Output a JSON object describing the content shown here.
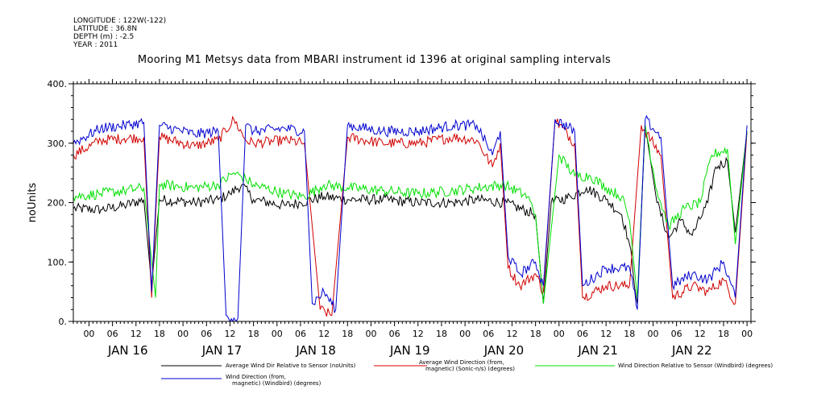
{
  "metadata": {
    "longitude": "LONGITUDE : 122W(-122)",
    "latitude": "LATITUDE : 36.8N",
    "depth": "DEPTH (m) : -2.5",
    "year": "YEAR : 2011"
  },
  "chart_data": {
    "type": "line",
    "title": "Mooring M1 Metsys data from MBARI instrument id 1396 at original sampling intervals",
    "ylabel": "noUnits",
    "xlabel": "",
    "ylim": [
      0,
      400
    ],
    "xlim": [
      "2011-01-15T20:00",
      "2011-01-23T01:00"
    ],
    "y_ticks": [
      "0.",
      "100.",
      "200.",
      "300.",
      "400."
    ],
    "x_hour_ticks": [
      "00",
      "06",
      "12",
      "18"
    ],
    "day_labels": [
      "JAN 16",
      "JAN 17",
      "JAN 18",
      "JAN 19",
      "JAN 20",
      "JAN 21",
      "JAN 22"
    ],
    "grid": false,
    "legend_placement": "bottom",
    "colors": {
      "avg_wind_dir_rel_sensor": "#000000",
      "avg_wind_direction_sonic": "#d00000",
      "wind_dir_rel_sensor_windbird": "#00e000",
      "wind_direction_windbird": "#0000d0"
    },
    "series": [
      {
        "name": "Average Wind Dir Relative to Sensor (noUnits)",
        "color": "#000000",
        "points": [
          [
            "2011-01-15T20:00",
            190
          ],
          [
            "2011-01-16T03:00",
            188
          ],
          [
            "2011-01-16T09:00",
            195
          ],
          [
            "2011-01-16T14:00",
            205
          ],
          [
            "2011-01-16T16:00",
            60
          ],
          [
            "2011-01-16T18:00",
            205
          ],
          [
            "2011-01-17T03:00",
            200
          ],
          [
            "2011-01-17T09:00",
            205
          ],
          [
            "2011-01-17T12:00",
            215
          ],
          [
            "2011-01-17T15:00",
            230
          ],
          [
            "2011-01-17T18:00",
            205
          ],
          [
            "2011-01-18T02:00",
            195
          ],
          [
            "2011-01-18T06:00",
            200
          ],
          [
            "2011-01-18T12:00",
            210
          ],
          [
            "2011-01-18T18:00",
            205
          ],
          [
            "2011-01-19T03:00",
            205
          ],
          [
            "2011-01-19T12:00",
            200
          ],
          [
            "2011-01-19T21:00",
            200
          ],
          [
            "2011-01-20T03:00",
            205
          ],
          [
            "2011-01-20T10:00",
            200
          ],
          [
            "2011-01-20T18:00",
            180
          ],
          [
            "2011-01-20T20:00",
            30
          ],
          [
            "2011-01-20T22:00",
            200
          ],
          [
            "2011-01-21T03:00",
            210
          ],
          [
            "2011-01-21T07:00",
            225
          ],
          [
            "2011-01-21T12:00",
            205
          ],
          [
            "2011-01-21T16:00",
            180
          ],
          [
            "2011-01-21T18:00",
            130
          ],
          [
            "2011-01-21T20:00",
            30
          ],
          [
            "2011-01-21T22:00",
            330
          ],
          [
            "2011-01-22T01:00",
            200
          ],
          [
            "2011-01-22T04:00",
            140
          ],
          [
            "2011-01-22T07:00",
            170
          ],
          [
            "2011-01-22T10:00",
            145
          ],
          [
            "2011-01-22T14:00",
            200
          ],
          [
            "2011-01-22T16:00",
            260
          ],
          [
            "2011-01-22T19:00",
            270
          ],
          [
            "2011-01-22T21:00",
            150
          ],
          [
            "2011-01-23T00:00",
            320
          ]
        ]
      },
      {
        "name": "Average Wind Direction (from, magnetic) (Sonic-n/s) (degrees)",
        "color": "#d00000",
        "points": [
          [
            "2011-01-15T20:00",
            280
          ],
          [
            "2011-01-16T03:00",
            305
          ],
          [
            "2011-01-16T09:00",
            308
          ],
          [
            "2011-01-16T14:00",
            310
          ],
          [
            "2011-01-16T16:00",
            40
          ],
          [
            "2011-01-16T18:00",
            310
          ],
          [
            "2011-01-17T03:00",
            295
          ],
          [
            "2011-01-17T09:00",
            305
          ],
          [
            "2011-01-17T13:00",
            340
          ],
          [
            "2011-01-17T16:00",
            305
          ],
          [
            "2011-01-17T18:00",
            300
          ],
          [
            "2011-01-18T02:00",
            305
          ],
          [
            "2011-01-18T07:00",
            300
          ],
          [
            "2011-01-18T11:00",
            20
          ],
          [
            "2011-01-18T14:00",
            10
          ],
          [
            "2011-01-18T18:00",
            310
          ],
          [
            "2011-01-19T03:00",
            300
          ],
          [
            "2011-01-19T12:00",
            300
          ],
          [
            "2011-01-19T21:00",
            310
          ],
          [
            "2011-01-20T03:00",
            305
          ],
          [
            "2011-01-20T07:00",
            260
          ],
          [
            "2011-01-20T09:00",
            300
          ],
          [
            "2011-01-20T11:00",
            90
          ],
          [
            "2011-01-20T14:00",
            60
          ],
          [
            "2011-01-20T18:00",
            80
          ],
          [
            "2011-01-20T20:00",
            50
          ],
          [
            "2011-01-20T23:00",
            340
          ],
          [
            "2011-01-21T04:00",
            300
          ],
          [
            "2011-01-21T06:00",
            40
          ],
          [
            "2011-01-21T12:00",
            60
          ],
          [
            "2011-01-21T18:00",
            60
          ],
          [
            "2011-01-21T21:00",
            330
          ],
          [
            "2011-01-22T02:00",
            280
          ],
          [
            "2011-01-22T05:00",
            40
          ],
          [
            "2011-01-22T10:00",
            60
          ],
          [
            "2011-01-22T14:00",
            50
          ],
          [
            "2011-01-22T18:00",
            70
          ],
          [
            "2011-01-22T21:00",
            30
          ],
          [
            "2011-01-23T00:00",
            320
          ]
        ]
      },
      {
        "name": "Wind Direction Relative to Sensor (Windbird) (degrees)",
        "color": "#00e000",
        "points": [
          [
            "2011-01-15T20:00",
            210
          ],
          [
            "2011-01-16T03:00",
            215
          ],
          [
            "2011-01-16T09:00",
            220
          ],
          [
            "2011-01-16T14:00",
            225
          ],
          [
            "2011-01-16T17:00",
            40
          ],
          [
            "2011-01-16T18:00",
            230
          ],
          [
            "2011-01-17T03:00",
            225
          ],
          [
            "2011-01-17T09:00",
            230
          ],
          [
            "2011-01-17T13:00",
            250
          ],
          [
            "2011-01-17T16:00",
            240
          ],
          [
            "2011-01-17T18:00",
            230
          ],
          [
            "2011-01-18T02:00",
            215
          ],
          [
            "2011-01-18T07:00",
            210
          ],
          [
            "2011-01-18T12:00",
            230
          ],
          [
            "2011-01-18T18:00",
            225
          ],
          [
            "2011-01-19T03:00",
            220
          ],
          [
            "2011-01-19T12:00",
            215
          ],
          [
            "2011-01-19T21:00",
            220
          ],
          [
            "2011-01-20T03:00",
            225
          ],
          [
            "2011-01-20T10:00",
            230
          ],
          [
            "2011-01-20T16:00",
            210
          ],
          [
            "2011-01-20T18:00",
            180
          ],
          [
            "2011-01-20T20:00",
            30
          ],
          [
            "2011-01-21T00:00",
            280
          ],
          [
            "2011-01-21T04:00",
            245
          ],
          [
            "2011-01-21T08:00",
            245
          ],
          [
            "2011-01-21T12:00",
            225
          ],
          [
            "2011-01-21T16:00",
            210
          ],
          [
            "2011-01-21T18:00",
            170
          ],
          [
            "2011-01-21T20:00",
            40
          ],
          [
            "2011-01-21T22:00",
            330
          ],
          [
            "2011-01-22T01:00",
            220
          ],
          [
            "2011-01-22T04:00",
            160
          ],
          [
            "2011-01-22T08:00",
            190
          ],
          [
            "2011-01-22T12:00",
            200
          ],
          [
            "2011-01-22T15:00",
            280
          ],
          [
            "2011-01-22T19:00",
            290
          ],
          [
            "2011-01-22T21:00",
            130
          ],
          [
            "2011-01-23T00:00",
            320
          ]
        ]
      },
      {
        "name": "Wind Direction (from, magnetic) (Windbird) (degrees)",
        "color": "#0000d0",
        "points": [
          [
            "2011-01-15T20:00",
            300
          ],
          [
            "2011-01-16T03:00",
            325
          ],
          [
            "2011-01-16T09:00",
            330
          ],
          [
            "2011-01-16T14:00",
            335
          ],
          [
            "2011-01-16T16:00",
            50
          ],
          [
            "2011-01-16T18:00",
            330
          ],
          [
            "2011-01-17T03:00",
            315
          ],
          [
            "2011-01-17T09:00",
            320
          ],
          [
            "2011-01-17T11:00",
            10
          ],
          [
            "2011-01-17T14:00",
            5
          ],
          [
            "2011-01-17T16:00",
            330
          ],
          [
            "2011-01-17T18:00",
            320
          ],
          [
            "2011-01-18T02:00",
            325
          ],
          [
            "2011-01-18T07:00",
            320
          ],
          [
            "2011-01-18T09:00",
            30
          ],
          [
            "2011-01-18T12:00",
            50
          ],
          [
            "2011-01-18T15:00",
            20
          ],
          [
            "2011-01-18T18:00",
            330
          ],
          [
            "2011-01-19T03:00",
            320
          ],
          [
            "2011-01-19T12:00",
            320
          ],
          [
            "2011-01-19T21:00",
            330
          ],
          [
            "2011-01-20T03:00",
            330
          ],
          [
            "2011-01-20T07:00",
            280
          ],
          [
            "2011-01-20T09:00",
            320
          ],
          [
            "2011-01-20T11:00",
            110
          ],
          [
            "2011-01-20T14:00",
            80
          ],
          [
            "2011-01-20T18:00",
            100
          ],
          [
            "2011-01-20T20:00",
            60
          ],
          [
            "2011-01-20T23:00",
            340
          ],
          [
            "2011-01-21T04:00",
            320
          ],
          [
            "2011-01-21T06:00",
            60
          ],
          [
            "2011-01-21T12:00",
            90
          ],
          [
            "2011-01-21T18:00",
            90
          ],
          [
            "2011-01-21T20:00",
            20
          ],
          [
            "2011-01-21T22:00",
            340
          ],
          [
            "2011-01-22T02:00",
            310
          ],
          [
            "2011-01-22T05:00",
            60
          ],
          [
            "2011-01-22T10:00",
            80
          ],
          [
            "2011-01-22T14:00",
            70
          ],
          [
            "2011-01-22T18:00",
            100
          ],
          [
            "2011-01-22T21:00",
            40
          ],
          [
            "2011-01-23T00:00",
            330
          ]
        ]
      }
    ],
    "legend": [
      {
        "text_lines": [
          "Average Wind Dir Relative to Sensor (noUnits)"
        ]
      },
      {
        "text_lines": [
          "Average Wind Direction (from,",
          "magnetic) (Sonic-n/s) (degrees)"
        ]
      },
      {
        "text_lines": [
          "Wind Direction Relative to Sensor (Windbird) (degrees)"
        ]
      },
      {
        "text_lines": [
          "Wind Direction (from,",
          "magnetic) (Windbird) (degrees)"
        ]
      }
    ]
  }
}
